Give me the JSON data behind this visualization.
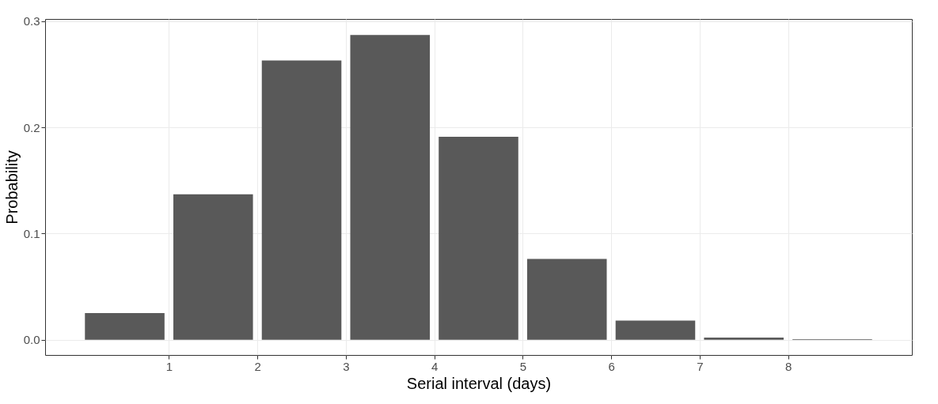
{
  "chart_data": {
    "type": "bar",
    "xlabel": "Serial interval (days)",
    "ylabel": "Probability",
    "x": [
      0.5,
      1.5,
      2.5,
      3.5,
      4.5,
      5.5,
      6.5,
      7.5,
      8.5
    ],
    "values": [
      0.025,
      0.137,
      0.263,
      0.287,
      0.191,
      0.076,
      0.018,
      0.002,
      0.0005
    ],
    "color": "#595959",
    "xlim": [
      -0.4,
      9.4
    ],
    "xticks": [
      1,
      2,
      3,
      4,
      5,
      6,
      7,
      8
    ],
    "ylim": [
      -0.0144,
      0.302
    ],
    "yticks": [
      {
        "value": 0,
        "label": "0.0"
      },
      {
        "value": 0.1,
        "label": "0.1"
      },
      {
        "value": 0.2,
        "label": "0.2"
      },
      {
        "value": 0.3,
        "label": "0.3"
      }
    ],
    "grid": true
  }
}
